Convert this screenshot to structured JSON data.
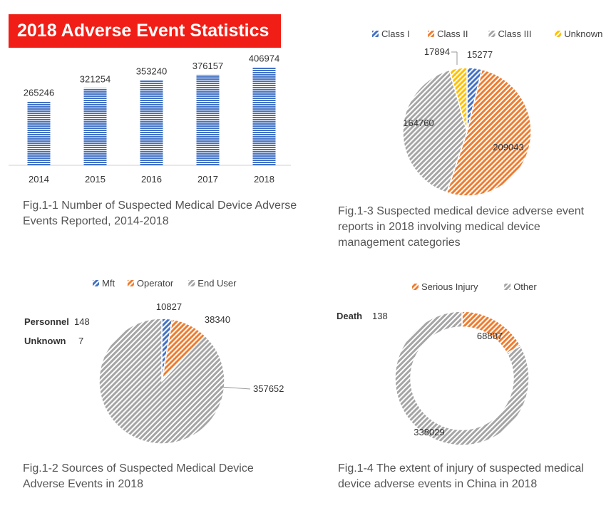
{
  "title": "2018 Adverse Event Statistics",
  "colors": {
    "banner": "#f01e16",
    "blue": "#4472c4",
    "orange": "#ed7d31",
    "gray": "#a5a5a5",
    "yellow": "#ffc000"
  },
  "chart_data": [
    {
      "id": "fig1",
      "type": "bar",
      "categories": [
        "2014",
        "2015",
        "2016",
        "2017",
        "2018"
      ],
      "values": [
        265246,
        321254,
        353240,
        376157,
        406974
      ],
      "ylim": [
        0,
        450000
      ],
      "grid": false,
      "legend": "none",
      "caption": "Fig.1-1 Number of Suspected Medical Device Adverse Events Reported, 2014-2018"
    },
    {
      "id": "fig3",
      "type": "pie",
      "legend": "top",
      "series": [
        {
          "name": "Class I",
          "value": 15277,
          "color": "#4472c4"
        },
        {
          "name": "Class II",
          "value": 209043,
          "color": "#ed7d31"
        },
        {
          "name": "Class III",
          "value": 164760,
          "color": "#a5a5a5"
        },
        {
          "name": "Unknown",
          "value": 17894,
          "color": "#ffc000"
        }
      ],
      "caption": "Fig.1-3 Suspected medical device adverse event reports in 2018 involving medical device management categories"
    },
    {
      "id": "fig2",
      "type": "pie",
      "legend": "top",
      "series": [
        {
          "name": "Mft",
          "value": 10827,
          "color": "#4472c4"
        },
        {
          "name": "Operator",
          "value": 38340,
          "color": "#ed7d31"
        },
        {
          "name": "End User",
          "value": 357652,
          "color": "#a5a5a5"
        }
      ],
      "annotations": [
        {
          "label": "Personnel",
          "value": "148"
        },
        {
          "label": "Unknown",
          "value": "7"
        }
      ],
      "caption": "Fig.1-2  Sources of Suspected Medical Device Adverse Events in 2018"
    },
    {
      "id": "fig4",
      "type": "pie",
      "subtype": "donut",
      "legend": "top",
      "series": [
        {
          "name": "Serious Injury",
          "value": 68807,
          "color": "#ed7d31"
        },
        {
          "name": "Other",
          "value": 338029,
          "color": "#a5a5a5"
        }
      ],
      "annotations": [
        {
          "label": "Death",
          "value": "138"
        }
      ],
      "caption": "Fig.1-4 The extent of injury of suspected medical device adverse events in China in 2018"
    }
  ]
}
